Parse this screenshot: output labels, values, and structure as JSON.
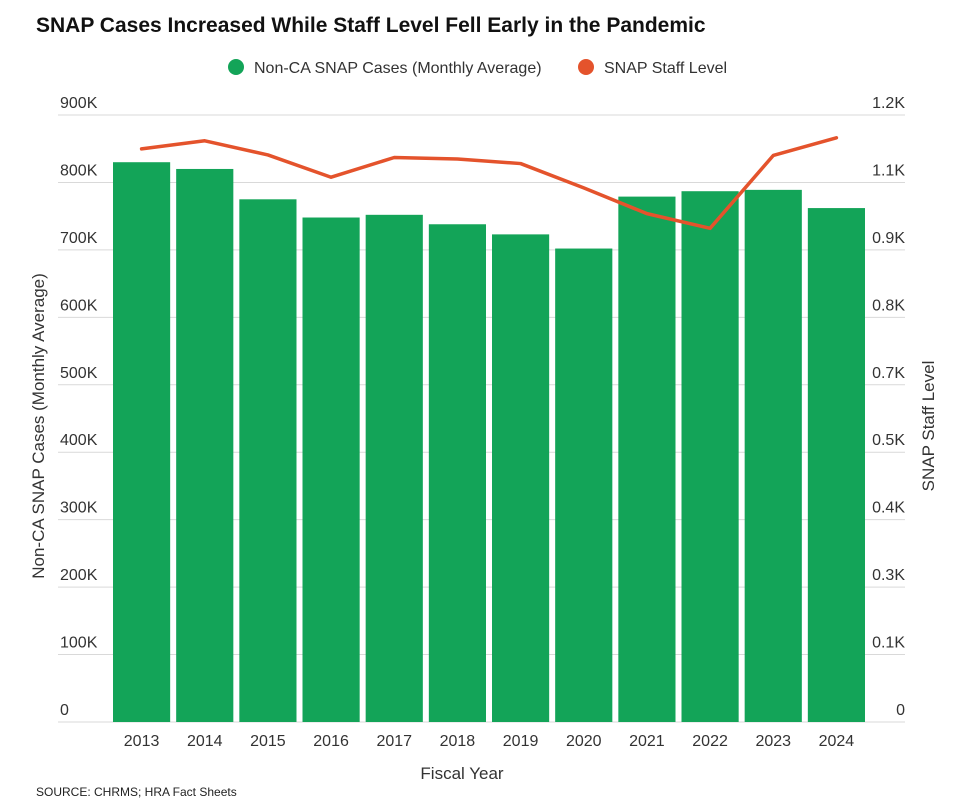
{
  "chart_data": {
    "type": "bar+line",
    "title": "SNAP Cases Increased While Staff Level Fell Early in the Pandemic",
    "categories": [
      "2013",
      "2014",
      "2015",
      "2016",
      "2017",
      "2018",
      "2019",
      "2020",
      "2021",
      "2022",
      "2023",
      "2024"
    ],
    "series": [
      {
        "name": "Non-CA SNAP Cases (Monthly Average)",
        "type": "bar",
        "axis": "left",
        "color": "#13a458",
        "values": [
          830000,
          820000,
          775000,
          748000,
          752000,
          738000,
          723000,
          702000,
          779000,
          787000,
          789000,
          762000
        ]
      },
      {
        "name": "SNAP Staff Level",
        "type": "line",
        "axis": "right",
        "color": "#e4532c",
        "values": [
          1133,
          1149,
          1121,
          1077,
          1116,
          1113,
          1104,
          1056,
          1005,
          976,
          1120,
          1155
        ]
      }
    ],
    "xlabel": "Fiscal Year",
    "ylabel_left": "Non-CA SNAP Cases (Monthly Average)",
    "ylabel_right": "SNAP Staff Level",
    "ylim_left": [
      0,
      900000
    ],
    "ylim_right": [
      0,
      1200
    ],
    "left_ticks": [
      "0",
      "100K",
      "200K",
      "300K",
      "400K",
      "500K",
      "600K",
      "700K",
      "800K",
      "900K"
    ],
    "right_ticks": [
      "0",
      "0.1K",
      "0.3K",
      "0.4K",
      "0.5K",
      "0.7K",
      "0.8K",
      "0.9K",
      "1.1K",
      "1.2K"
    ],
    "legend_position": "top-center",
    "grid": true,
    "source": "SOURCE: CHRMS; HRA Fact Sheets"
  }
}
